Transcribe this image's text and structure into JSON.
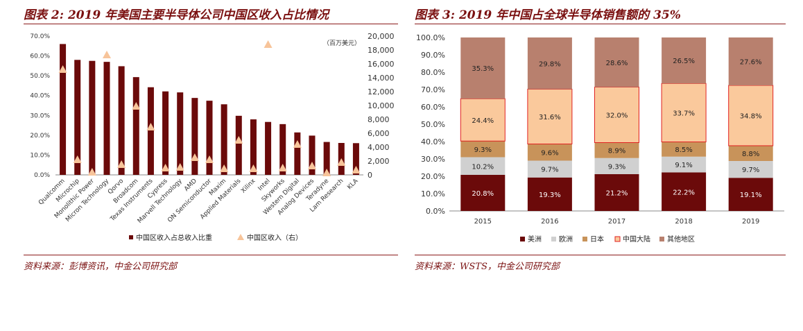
{
  "left_panel": {
    "title": "图表 2: 2019 年美国主要半导体公司中国区收入占比情况",
    "source": "资料来源：彭博资讯，中金公司研究部"
  },
  "right_panel": {
    "title": "图表 3: 2019 年中国占全球半导体销售额的 35%",
    "source": "资料来源：WSTS，中金公司研究部"
  },
  "colors": {
    "dark_red": "#6b0a0a",
    "marker": "#f7c49a",
    "europe": "#d0d0d0",
    "japan": "#c8935a",
    "china": "#fac99c",
    "china_border": "#e02020",
    "other": "#b8806e",
    "title_red": "#7a1010"
  },
  "chart_data": [
    {
      "type": "bar",
      "categories": [
        "Qualcomm",
        "Microchip",
        "Monolithic Power",
        "Micron Technology",
        "Qorvo",
        "Broadcom",
        "Texas Instruments",
        "Cypress",
        "Marvell Technology",
        "AMD",
        "ON Semiconductor",
        "Maxim",
        "Applied Materials",
        "Xilinx",
        "Intel",
        "Skyworks",
        "Western Digital",
        "Analog Devices",
        "Teradyne",
        "Lam Research",
        "KLA"
      ],
      "series": [
        {
          "name": "中国区收入占总收入比重",
          "axis": "left",
          "values": [
            66.0,
            58.0,
            57.5,
            57.0,
            54.8,
            49.3,
            44.2,
            42.1,
            41.6,
            38.8,
            37.4,
            35.6,
            29.8,
            28.0,
            26.7,
            25.6,
            21.4,
            19.8,
            16.6,
            16.1,
            16.0
          ]
        },
        {
          "name": "中国区收入（右）",
          "axis": "right",
          "values": [
            15200,
            2200,
            400,
            17300,
            1500,
            9900,
            6900,
            1000,
            1100,
            2500,
            2200,
            900,
            5000,
            900,
            18800,
            1000,
            4400,
            1300,
            300,
            1800,
            700
          ]
        }
      ],
      "y_left": {
        "ylim": [
          0,
          70
        ],
        "ticks": [
          "0.0%",
          "10.0%",
          "20.0%",
          "30.0%",
          "40.0%",
          "50.0%",
          "60.0%",
          "70.0%"
        ]
      },
      "y_right": {
        "ylim": [
          0,
          20000
        ],
        "ticks": [
          "0",
          "2,000",
          "4,000",
          "6,000",
          "8,000",
          "10,000",
          "12,000",
          "14,000",
          "16,000",
          "18,000",
          "20,000"
        ],
        "unit_label": "（百万美元）"
      },
      "legend_position": "bottom",
      "grid": false
    },
    {
      "type": "bar",
      "stacked": true,
      "categories": [
        "2015",
        "2016",
        "2017",
        "2018",
        "2019"
      ],
      "series": [
        {
          "name": "美洲",
          "values": [
            20.8,
            19.3,
            21.2,
            22.2,
            19.1
          ],
          "labels": [
            "20.8%",
            "19.3%",
            "21.2%",
            "22.2%",
            "19.1%"
          ]
        },
        {
          "name": "欧洲",
          "values": [
            10.2,
            9.7,
            9.3,
            9.1,
            9.7
          ],
          "labels": [
            "10.2%",
            "9.7%",
            "9.3%",
            "9.1%",
            "9.7%"
          ]
        },
        {
          "name": "日本",
          "values": [
            9.3,
            9.6,
            8.9,
            8.5,
            8.8
          ],
          "labels": [
            "9.3%",
            "9.6%",
            "8.9%",
            "8.5%",
            "8.8%"
          ]
        },
        {
          "name": "中国大陆",
          "values": [
            24.4,
            31.6,
            32.0,
            33.7,
            34.8
          ],
          "labels": [
            "24.4%",
            "31.6%",
            "32.0%",
            "33.7%",
            "34.8%"
          ]
        },
        {
          "name": "其他地区",
          "values": [
            35.3,
            29.8,
            28.6,
            26.5,
            27.6
          ],
          "labels": [
            "35.3%",
            "29.8%",
            "28.6%",
            "26.5%",
            "27.6%"
          ]
        }
      ],
      "ylim": [
        0,
        100
      ],
      "y_ticks": [
        "0.0%",
        "10.0%",
        "20.0%",
        "30.0%",
        "40.0%",
        "50.0%",
        "60.0%",
        "70.0%",
        "80.0%",
        "90.0%",
        "100.0%"
      ],
      "legend_position": "bottom",
      "grid": false
    }
  ]
}
